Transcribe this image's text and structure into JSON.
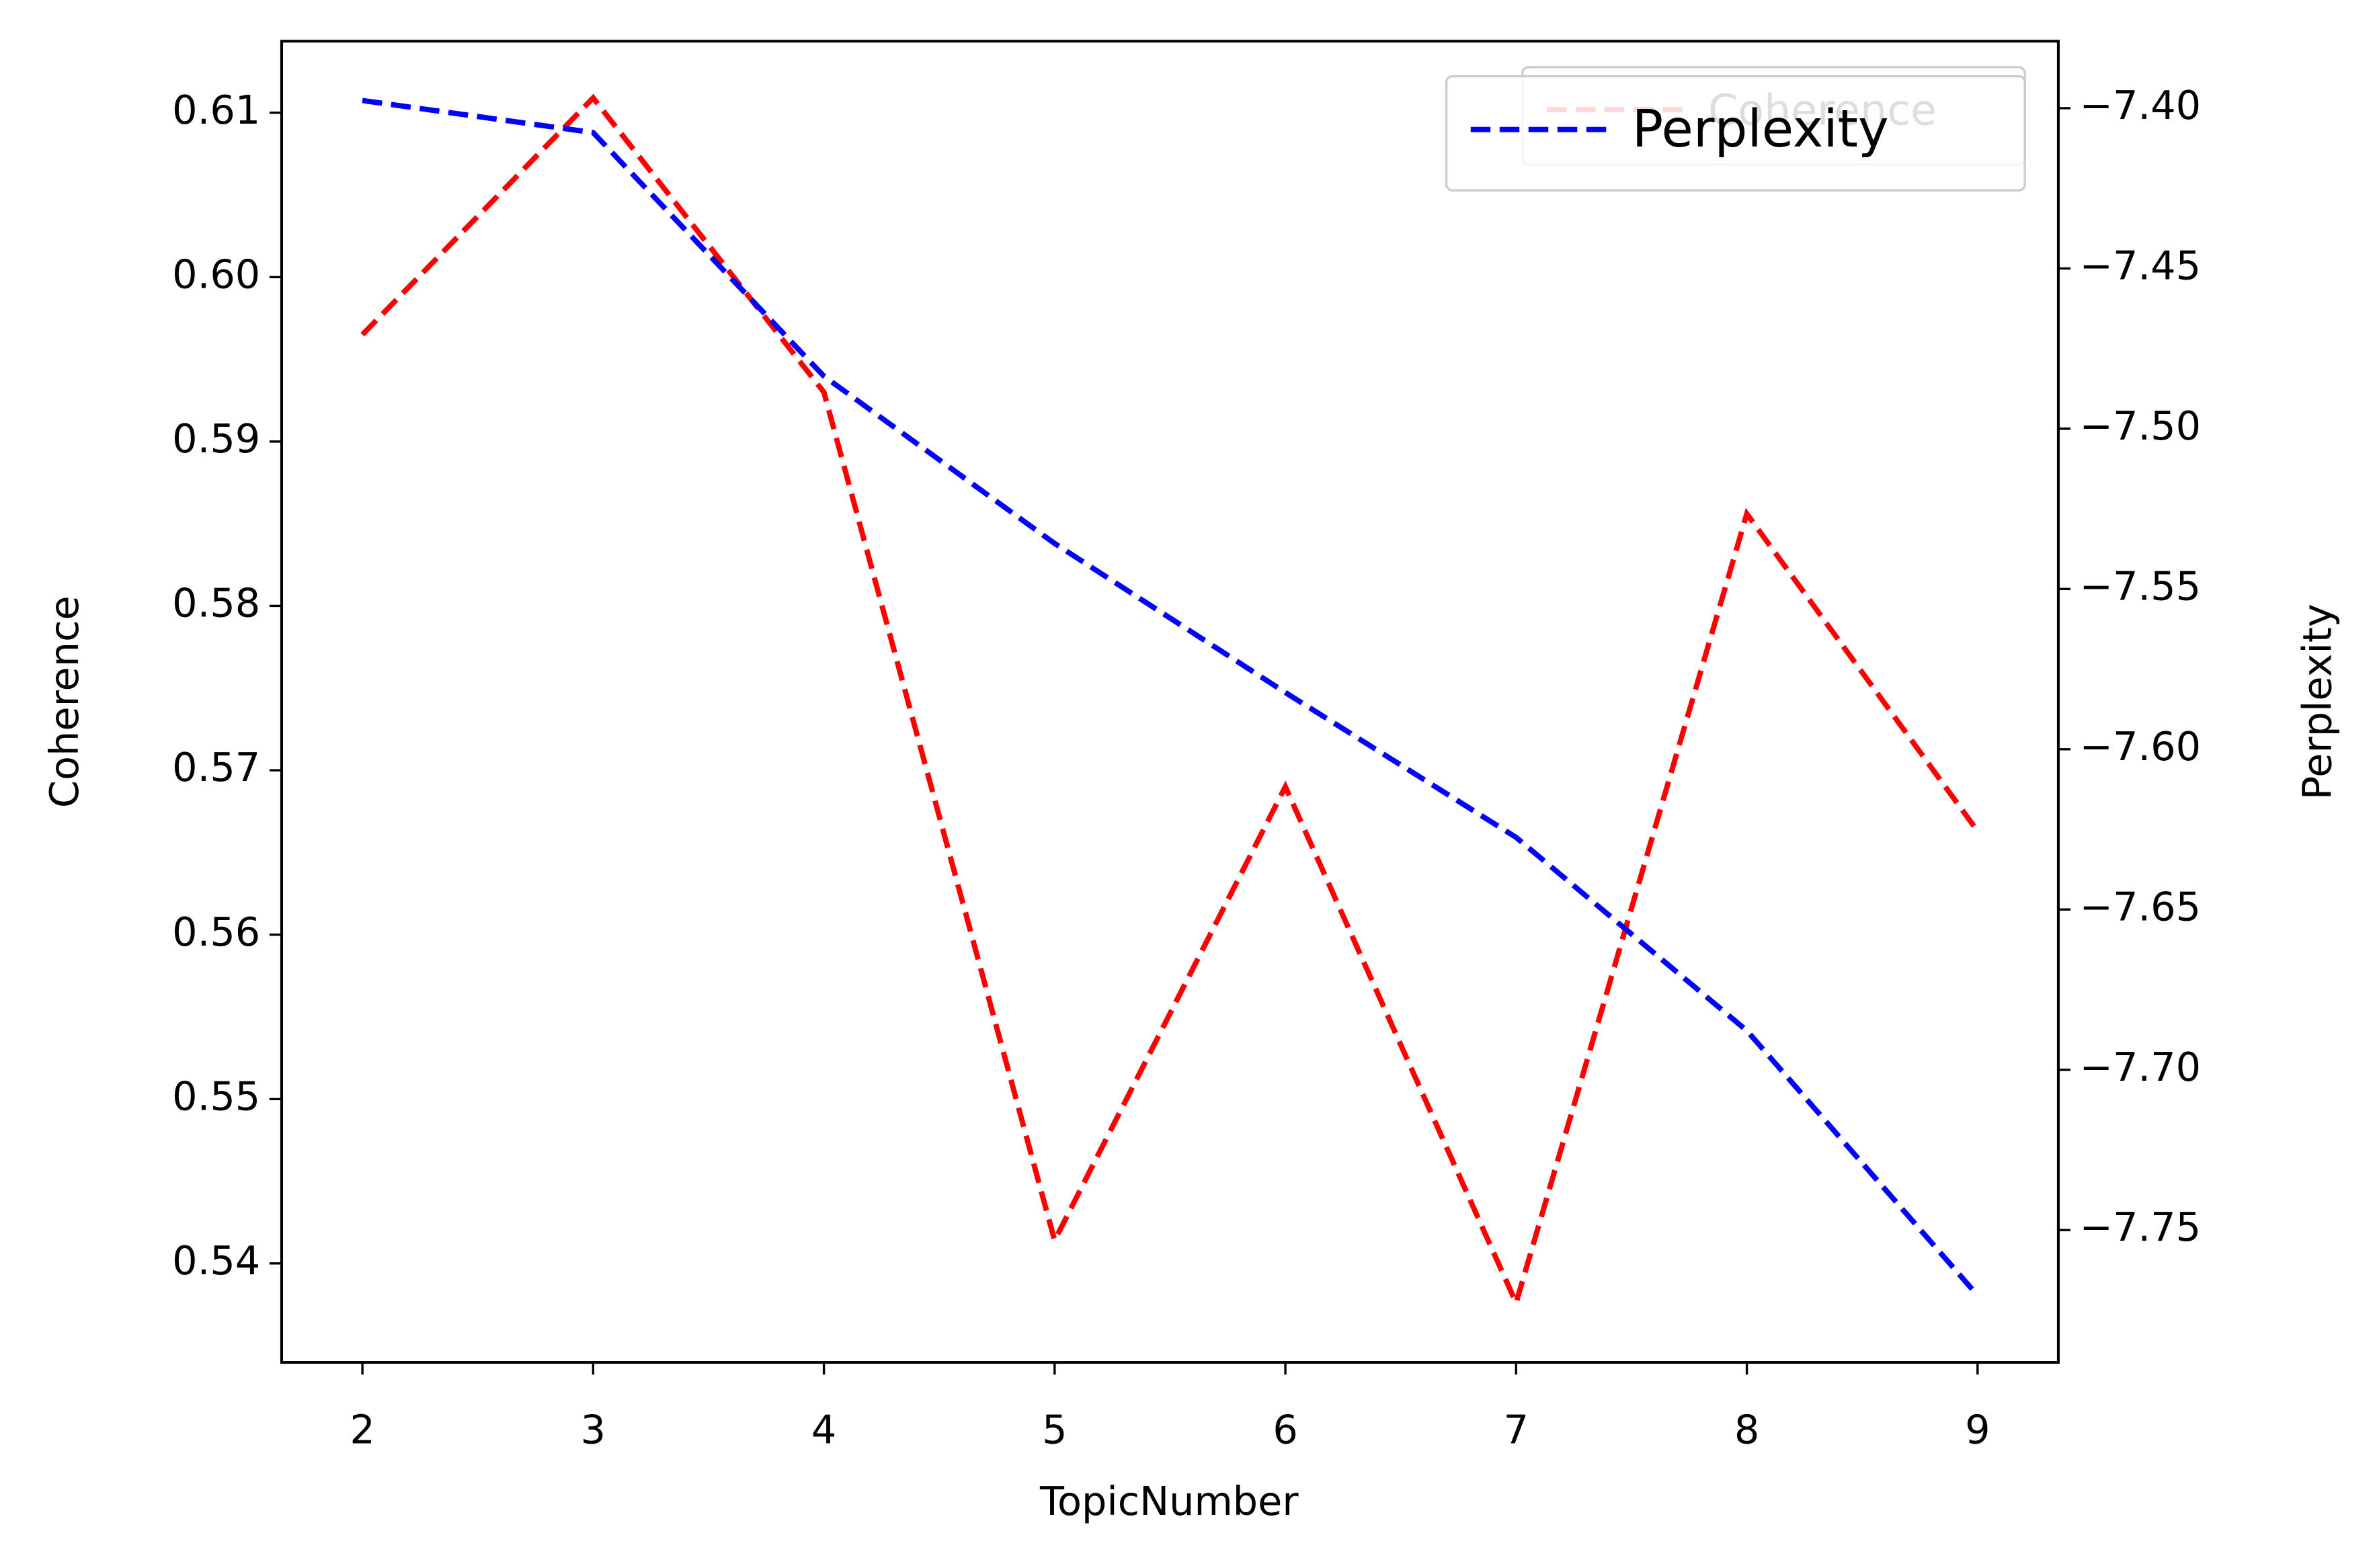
{
  "chart_data": {
    "type": "line",
    "x_label": "TopicNumber",
    "y_label": "Coherence",
    "y2_label": "Perplexity",
    "x": [
      2,
      3,
      4,
      5,
      6,
      7,
      8,
      9
    ],
    "xlim": [
      1.65,
      9.35
    ],
    "xticks": [
      2,
      3,
      4,
      5,
      6,
      7,
      8,
      9
    ],
    "ylim": [
      0.53398,
      0.61435
    ],
    "yticks": [
      0.54,
      0.55,
      0.56,
      0.57,
      0.58,
      0.59,
      {
        "value": 0.6,
        "label": "0.60"
      },
      0.61
    ],
    "y2lim": [
      -7.7913,
      -7.3791
    ],
    "y2ticks": [
      {
        "value": -7.75,
        "label": "−7.75"
      },
      {
        "value": -7.7,
        "label": "−7.70"
      },
      {
        "value": -7.65,
        "label": "−7.65"
      },
      {
        "value": -7.6,
        "label": "−7.60"
      },
      {
        "value": -7.55,
        "label": "−7.55"
      },
      {
        "value": -7.5,
        "label": "−7.50"
      },
      {
        "value": -7.45,
        "label": "−7.45"
      },
      {
        "value": -7.4,
        "label": "−7.40"
      }
    ],
    "legend": "upper right",
    "series": [
      {
        "name": "Coherence",
        "color": "#ff0000",
        "dashed": true,
        "values": [
          0.5965,
          0.6109,
          0.593,
          0.5414,
          0.569,
          0.5376,
          0.5856,
          0.5663
        ]
      },
      {
        "name": "Perplexity",
        "color": "#0000ff",
        "dashed": true,
        "axis": "y2",
        "values": [
          -7.3976,
          -7.4076,
          -7.4836,
          -7.5358,
          -7.5823,
          -7.6275,
          -7.6878,
          -7.7704
        ]
      }
    ]
  }
}
